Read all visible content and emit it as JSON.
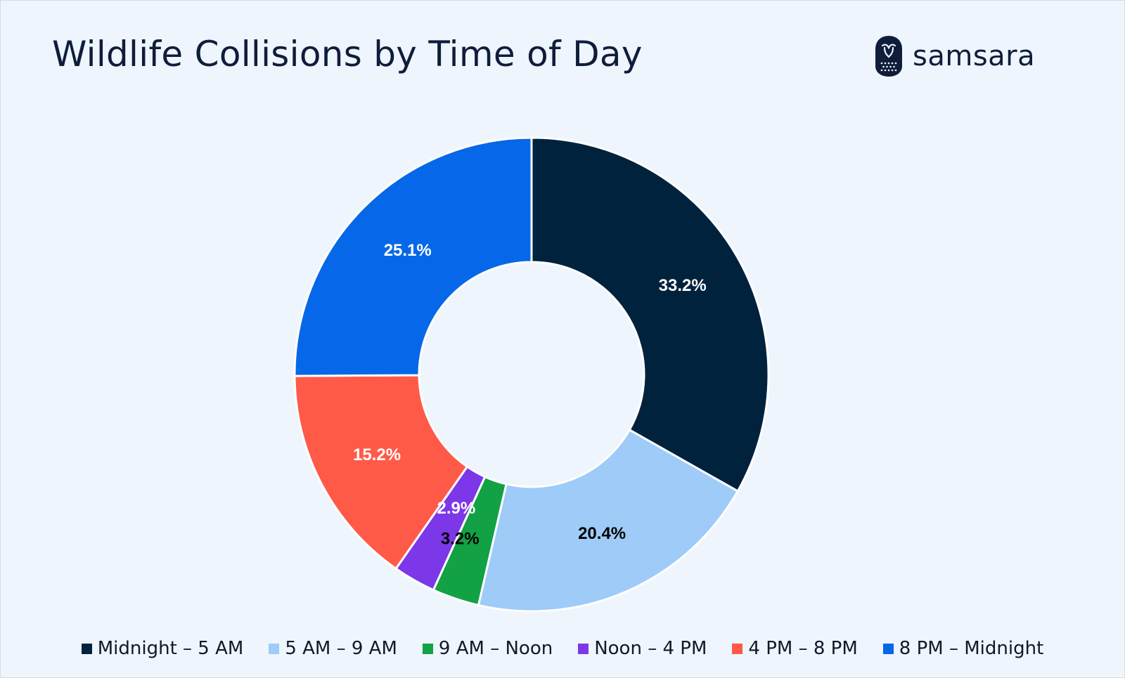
{
  "title": "Wildlife Collisions by Time of Day",
  "brand": {
    "name": "samsara",
    "icon": "owl-logo-icon"
  },
  "chart_data": {
    "type": "pie",
    "donut": true,
    "title": "Wildlife Collisions by Time of Day",
    "categories": [
      "Midnight – 5 AM",
      "5 AM – 9 AM",
      "9 AM – Noon",
      "Noon – 4 PM",
      "4 PM – 8 PM",
      "8 PM – Midnight"
    ],
    "values": [
      33.2,
      20.4,
      3.2,
      2.9,
      15.2,
      25.1
    ],
    "labels": [
      "33.2%",
      "20.4%",
      "3.2%",
      "2.9%",
      "15.2%",
      "25.1%"
    ],
    "colors": [
      "#00223d",
      "#9ecbf8",
      "#12a144",
      "#7c37e8",
      "#ff5a48",
      "#0668e8"
    ],
    "label_colors": [
      "#ffffff",
      "#000000",
      "#000000",
      "#ffffff",
      "#ffffff",
      "#ffffff"
    ],
    "legend_position": "bottom",
    "start_angle": "top",
    "direction": "clockwise"
  }
}
